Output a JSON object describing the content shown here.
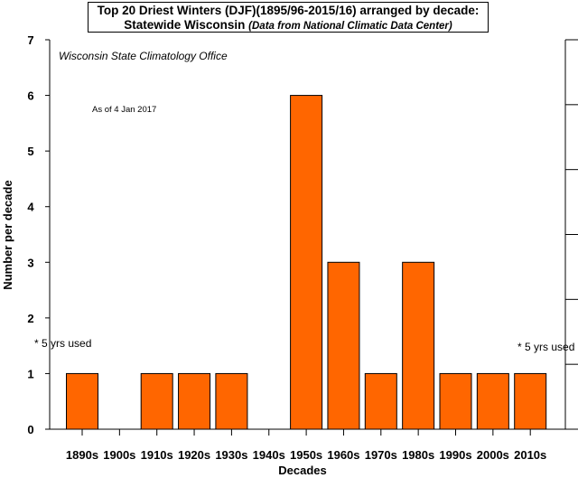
{
  "chart_data": {
    "type": "bar",
    "title_line1": "Top 20 Driest Winters (DJF)(1895/96-2015/16) arranged by decade:",
    "title_line2_main": "Statewide Wisconsin",
    "title_line2_source": "(Data from National Climatic Data Center)",
    "xlabel": "Decades",
    "ylabel": "Number per decade",
    "ylim": [
      0,
      7
    ],
    "yticks": [
      "0",
      "1",
      "2",
      "3",
      "4",
      "5",
      "6",
      "7"
    ],
    "categories": [
      "1890s",
      "1900s",
      "1910s",
      "1920s",
      "1930s",
      "1940s",
      "1950s",
      "1960s",
      "1970s",
      "1980s",
      "1990s",
      "2000s",
      "2010s"
    ],
    "values": [
      1,
      0,
      1,
      1,
      1,
      0,
      6,
      3,
      1,
      3,
      1,
      1,
      1
    ],
    "bar_color": "#ff6600",
    "annotations": {
      "office": "Wisconsin State Climatology Office",
      "as_of": "As of 4 Jan 2017",
      "note_left": "* 5 yrs used",
      "note_right": "* 5 yrs used"
    },
    "grid": false
  }
}
